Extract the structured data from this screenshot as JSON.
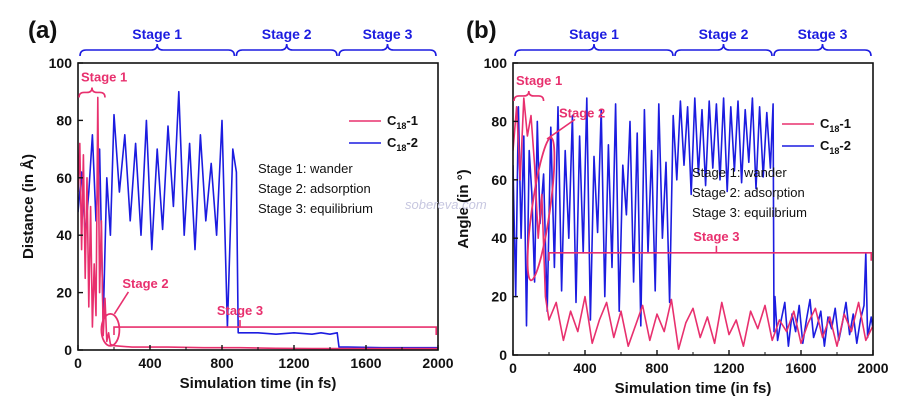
{
  "watermark": "sobereva.com",
  "colors": {
    "magenta": "#e8306e",
    "blue": "#1c1ce0"
  },
  "chart_data": [
    {
      "type": "line",
      "panel_label": "(a)",
      "xlabel": "Simulation time (in fs)",
      "ylabel": "Distance (in Å)",
      "xlim": [
        0,
        2000
      ],
      "ylim": [
        0,
        100
      ],
      "xticks": [
        "0",
        "400",
        "800",
        "1200",
        "1600",
        "2000"
      ],
      "yticks": [
        "0",
        "20",
        "40",
        "60",
        "80",
        "100"
      ],
      "legend": [
        {
          "sub": "18",
          "suffix": "-1",
          "color": "#e8306e"
        },
        {
          "sub": "18",
          "suffix": "-2",
          "color": "#1c1ce0"
        }
      ],
      "notes": [
        "Stage 1: wander",
        "Stage 2: adsorption",
        "Stage 3: equilibrium"
      ],
      "top_stages": [
        {
          "label": "Stage 1",
          "x0": 0,
          "x1": 880
        },
        {
          "label": "Stage 2",
          "x0": 880,
          "x1": 1450
        },
        {
          "label": "Stage 3",
          "x0": 1450,
          "x1": 2000
        }
      ],
      "annotations": {
        "stage1": {
          "label": "Stage 1",
          "x0": 0,
          "x1": 150,
          "y": 88
        },
        "stage2": {
          "label": "Stage 2",
          "x": 180,
          "y": 7
        },
        "stage3": {
          "label": "Stage 3",
          "x0": 200,
          "x1": 1990,
          "y": 8
        }
      },
      "series": [
        {
          "name": "C18-1",
          "color": "#e8306e",
          "x": [
            0,
            10,
            20,
            30,
            40,
            50,
            60,
            70,
            80,
            90,
            100,
            110,
            120,
            130,
            140,
            150,
            160,
            170,
            180,
            200,
            300,
            500,
            700,
            900,
            1100,
            1300,
            1500,
            1700,
            1900,
            2000
          ],
          "y": [
            55,
            72,
            35,
            68,
            25,
            60,
            15,
            50,
            8,
            30,
            12,
            88,
            20,
            45,
            5,
            18,
            3,
            6,
            2,
            1.5,
            1,
            1,
            0.8,
            0.8,
            0.6,
            0.5,
            0.5,
            0.5,
            0.5,
            0.5
          ]
        },
        {
          "name": "C18-2",
          "color": "#1c1ce0",
          "x": [
            0,
            20,
            40,
            60,
            80,
            100,
            120,
            140,
            160,
            180,
            200,
            230,
            260,
            290,
            320,
            350,
            380,
            410,
            440,
            470,
            500,
            530,
            560,
            590,
            620,
            650,
            680,
            710,
            740,
            770,
            800,
            830,
            860,
            880,
            890,
            900,
            1000,
            1100,
            1200,
            1300,
            1350,
            1400,
            1440,
            1450,
            1500,
            1700,
            1900,
            2000
          ],
          "y": [
            48,
            62,
            40,
            55,
            75,
            45,
            70,
            10,
            60,
            40,
            82,
            55,
            75,
            45,
            72,
            40,
            80,
            35,
            70,
            42,
            78,
            50,
            90,
            40,
            72,
            35,
            75,
            45,
            65,
            40,
            80,
            8,
            70,
            62,
            6,
            6,
            6,
            5.5,
            6,
            5.5,
            6,
            5.5,
            6,
            1,
            1,
            0.8,
            0.8,
            0.8
          ]
        }
      ]
    },
    {
      "type": "line",
      "panel_label": "(b)",
      "xlabel": "Simulation time (in fs)",
      "ylabel": "Angle (in °)",
      "xlim": [
        0,
        2000
      ],
      "ylim": [
        0,
        100
      ],
      "xticks": [
        "0",
        "400",
        "800",
        "1200",
        "1600",
        "2000"
      ],
      "yticks": [
        "0",
        "20",
        "40",
        "60",
        "80",
        "100"
      ],
      "legend": [
        {
          "sub": "18",
          "suffix": "-1",
          "color": "#e8306e"
        },
        {
          "sub": "18",
          "suffix": "-2",
          "color": "#1c1ce0"
        }
      ],
      "notes": [
        "Stage 1: wander",
        "Stage 2: adsorption",
        "Stage 3: equilibrium"
      ],
      "top_stages": [
        {
          "label": "Stage 1",
          "x0": 0,
          "x1": 900
        },
        {
          "label": "Stage 2",
          "x0": 900,
          "x1": 1450
        },
        {
          "label": "Stage 3",
          "x0": 1450,
          "x1": 2000
        }
      ],
      "annotations": {
        "stage1": {
          "label": "Stage 1",
          "x0": 0,
          "x1": 170,
          "y": 87
        },
        "stage2": {
          "label": "Stage 2",
          "x": 200,
          "y": 80
        },
        "stage3": {
          "label": "Stage 3",
          "x0": 200,
          "x1": 1990,
          "y": 35
        }
      },
      "series": [
        {
          "name": "C18-1",
          "color": "#e8306e",
          "x": [
            0,
            20,
            40,
            60,
            80,
            100,
            120,
            140,
            160,
            180,
            200,
            240,
            280,
            320,
            360,
            400,
            440,
            480,
            520,
            560,
            600,
            640,
            680,
            720,
            760,
            800,
            840,
            880,
            920,
            960,
            1000,
            1040,
            1080,
            1120,
            1160,
            1200,
            1240,
            1280,
            1320,
            1360,
            1400,
            1440,
            1480,
            1520,
            1560,
            1600,
            1640,
            1680,
            1720,
            1760,
            1800,
            1840,
            1880,
            1920,
            1960,
            2000
          ],
          "y": [
            70,
            85,
            60,
            88,
            75,
            82,
            65,
            40,
            55,
            20,
            12,
            18,
            5,
            15,
            8,
            20,
            4,
            12,
            18,
            6,
            15,
            3,
            10,
            17,
            5,
            14,
            8,
            19,
            2,
            11,
            16,
            6,
            13,
            4,
            18,
            7,
            12,
            3,
            15,
            9,
            17,
            5,
            12,
            8,
            15,
            4,
            11,
            16,
            6,
            13,
            3,
            14,
            8,
            18,
            5,
            10
          ]
        },
        {
          "name": "C18-2",
          "color": "#1c1ce0",
          "x": [
            0,
            15,
            30,
            45,
            60,
            75,
            90,
            105,
            120,
            135,
            150,
            170,
            190,
            210,
            230,
            250,
            270,
            290,
            310,
            330,
            350,
            370,
            390,
            410,
            430,
            450,
            470,
            490,
            510,
            530,
            550,
            570,
            590,
            610,
            630,
            650,
            670,
            690,
            710,
            730,
            750,
            770,
            790,
            810,
            830,
            850,
            870,
            890,
            910,
            930,
            950,
            970,
            990,
            1010,
            1030,
            1050,
            1070,
            1090,
            1110,
            1130,
            1150,
            1170,
            1190,
            1210,
            1230,
            1250,
            1270,
            1290,
            1310,
            1330,
            1350,
            1370,
            1390,
            1410,
            1430,
            1445,
            1450,
            1455,
            1470,
            1490,
            1510,
            1530,
            1550,
            1570,
            1590,
            1610,
            1630,
            1650,
            1670,
            1690,
            1710,
            1730,
            1750,
            1770,
            1790,
            1810,
            1830,
            1850,
            1870,
            1890,
            1910,
            1930,
            1950,
            1960,
            1970,
            1990,
            2000
          ],
          "y": [
            65,
            20,
            85,
            40,
            75,
            10,
            70,
            55,
            25,
            80,
            45,
            62,
            15,
            78,
            30,
            85,
            22,
            70,
            40,
            82,
            18,
            75,
            35,
            88,
            12,
            68,
            42,
            84,
            20,
            72,
            30,
            86,
            15,
            65,
            48,
            80,
            25,
            76,
            10,
            84,
            35,
            70,
            22,
            86,
            40,
            66,
            18,
            82,
            60,
            87,
            65,
            85,
            55,
            88,
            62,
            84,
            58,
            87,
            64,
            86,
            60,
            88,
            56,
            85,
            63,
            87,
            59,
            84,
            66,
            88,
            57,
            85,
            61,
            83,
            64,
            86,
            8,
            20,
            5,
            12,
            18,
            3,
            14,
            8,
            17,
            4,
            12,
            19,
            6,
            10,
            15,
            3,
            13,
            9,
            16,
            5,
            11,
            18,
            7,
            14,
            4,
            12,
            17,
            35,
            6,
            13,
            9
          ]
        }
      ]
    }
  ]
}
